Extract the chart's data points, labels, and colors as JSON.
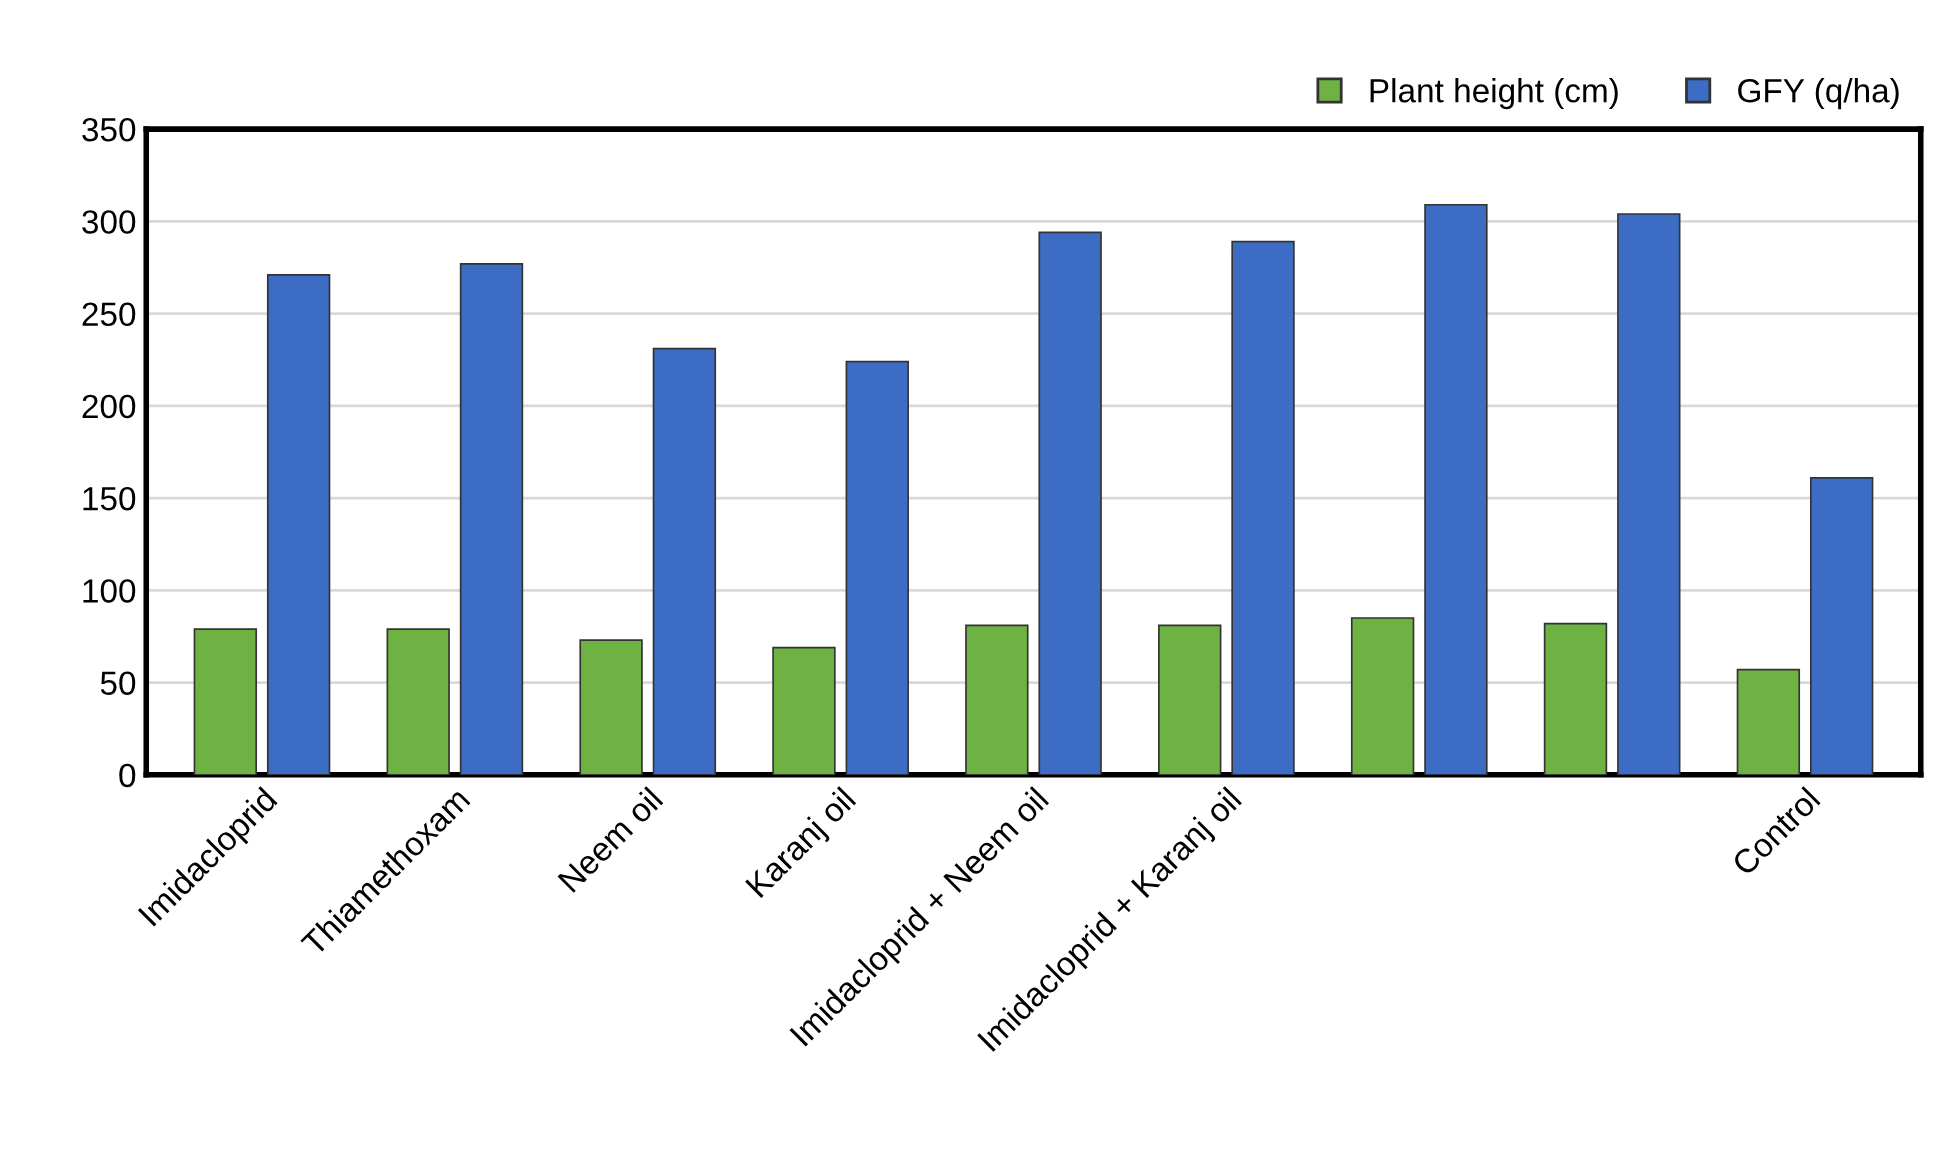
{
  "chart_data": {
    "type": "bar",
    "categories": [
      "Imidacloprid",
      "Thiamethoxam",
      "Neem oil",
      "Karanj oil",
      "Imidacloprid + Neem oil",
      "Imidacloprid + Karanj oil",
      null,
      null,
      "Control"
    ],
    "series": [
      {
        "name": "Plant height (cm)",
        "color": "#6fb244",
        "values": [
          79,
          79,
          73,
          69,
          81,
          81,
          85,
          82,
          57
        ]
      },
      {
        "name": "GFY (q/ha)",
        "color": "#3c6cc4",
        "values": [
          271,
          277,
          231,
          224,
          294,
          289,
          309,
          304,
          161
        ]
      }
    ],
    "ylim": [
      0,
      350
    ],
    "yticks": [
      0,
      50,
      100,
      150,
      200,
      250,
      300,
      350
    ],
    "grid": "y",
    "legend": "top right"
  }
}
